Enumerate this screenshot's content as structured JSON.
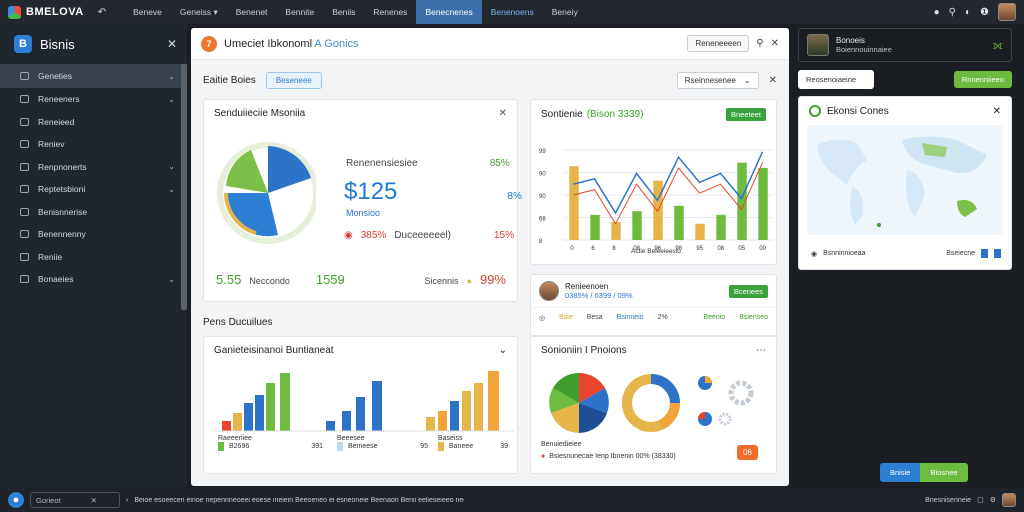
{
  "topbar": {
    "brand": "BMELOVA",
    "nav": [
      "Beneve",
      "Geneiss ▾",
      "Benenet",
      "Bennite",
      "Beniis",
      "Renenes",
      "Benecnenes",
      "Benenoens",
      "Beneiy"
    ]
  },
  "sidebar": {
    "title": "Bisnis",
    "items": [
      {
        "label": "Geneties",
        "chev": true
      },
      {
        "label": "Reneeners",
        "chev": true
      },
      {
        "label": "Reneieed",
        "chev": false
      },
      {
        "label": "Reniev",
        "chev": false
      },
      {
        "label": "Renpnonerts",
        "chev": true
      },
      {
        "label": "Reptetsbioni",
        "chev": true
      },
      {
        "label": "Benisnnerise",
        "chev": false
      },
      {
        "label": "Benennenny",
        "chev": false
      },
      {
        "label": "Reniie",
        "chev": false
      },
      {
        "label": "Bonaeies",
        "chev": true
      }
    ]
  },
  "main": {
    "title": "Umeciet Ibkonoml",
    "title_sub": "A Gonics",
    "btn": "Reneneeeen",
    "subbar_label": "Eaitie Boies",
    "tag": "Beseneee",
    "select": "Rseinnesenee",
    "section_label": "Pens Ducuilues"
  },
  "card1": {
    "title": "Senduiieciie Msoniia",
    "kpi1": "Renenensiesiee",
    "kpi1_val": "85%",
    "big": "$125",
    "big_pct": "8%",
    "big_sub": "Monsioo",
    "row_pct": "385%",
    "row_lbl": "Duceeeeeel)",
    "row_val": "15%",
    "f1": "5.55",
    "f1_lbl": "Neccondo",
    "f2": "1559",
    "f3_lbl": "Sicennis",
    "f3": "99%"
  },
  "card2": {
    "title": "Sontienie",
    "title_sub": "(Bison 3339)",
    "badge": "Bneeteet",
    "xlabel": "Actie Beieeieesiu"
  },
  "card3": {
    "name": "Renieenoen",
    "sub": "0385% / 0399 / 09%",
    "badge": "Bcenees",
    "stats": [
      "Bsie",
      "Besa",
      "Bsinneio",
      "2%",
      "Beenio",
      "Bsienseo"
    ]
  },
  "card4": {
    "title": "Ganieteisinanoi Buntianeat",
    "legend": [
      {
        "l": "Raeeeriiee",
        "v": "B2696"
      },
      {
        "l": "Beeesee",
        "v": "Bemeese"
      },
      {
        "l": "Baseiss",
        "v": "Baneee"
      }
    ],
    "vals": [
      "391",
      "95",
      "39"
    ]
  },
  "card5": {
    "title": "Sonioniin I Pnoions",
    "l1": "Benuiedieiee",
    "l2": "Bsiesnunecae Ienp Ibnenin 00% (38330)",
    "b": "06"
  },
  "right": {
    "name": "Bonoeis",
    "sub": "Boiennouinnaiee",
    "input": "Reosenoiaeine",
    "btn": "Rnnenniieeo",
    "map_title": "Ekonsi Cones",
    "map_lbl": "Bnisie",
    "map_lbl2": "Biosnee",
    "foot1": "Bsnninnioeaa",
    "foot2": "Bseiecne"
  },
  "bottom": {
    "search": "Gorieot",
    "text": "Beioe esoeecen einoe nepennneoeei eoese ineiein Beeoeneo ei esneoneie Beenaon Benii eelieseieeo nee enon Bsenne seeeeeoee Benseeei se oses Reneeeo eseennen Bonteonie (Benne)",
    "right": "Bnesnisenneie"
  },
  "chart_data": {
    "type": "bar",
    "categories": [
      "0",
      "6",
      "8",
      "08",
      "96",
      "98",
      "95",
      "08",
      "05",
      "00"
    ],
    "series": [
      {
        "name": "bars",
        "values": [
          82,
          28,
          20,
          32,
          66,
          38,
          18,
          28,
          86,
          80
        ]
      },
      {
        "name": "line",
        "values": [
          62,
          68,
          30,
          74,
          44,
          92,
          64,
          74,
          46,
          98
        ]
      }
    ],
    "ylim": [
      0,
      100
    ]
  }
}
